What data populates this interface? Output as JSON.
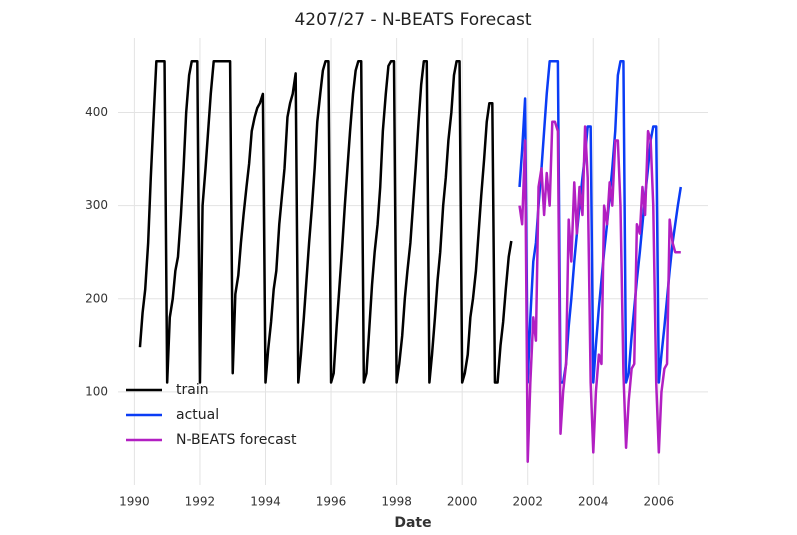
{
  "chart_data": {
    "type": "line",
    "title": "4207/27 - N-BEATS Forecast",
    "x_label": "Date",
    "xlim": [
      1989.5,
      2007.5
    ],
    "xticks": [
      1990,
      1992,
      1994,
      1996,
      1998,
      2000,
      2002,
      2004,
      2006
    ],
    "ylim": [
      0,
      480
    ],
    "yticks": [
      100,
      200,
      300,
      400
    ],
    "grid": true,
    "legend": "lower left",
    "series": [
      {
        "name": "train",
        "color": "#000000",
        "x": [
          1990.17,
          1990.25,
          1990.33,
          1990.42,
          1990.5,
          1990.58,
          1990.67,
          1990.75,
          1990.83,
          1990.92,
          1991,
          1991.08,
          1991.17,
          1991.25,
          1991.33,
          1991.42,
          1991.5,
          1991.58,
          1991.67,
          1991.75,
          1991.83,
          1991.92,
          1992,
          1992.08,
          1992.17,
          1992.25,
          1992.33,
          1992.42,
          1992.5,
          1992.58,
          1992.67,
          1992.75,
          1992.83,
          1992.92,
          1993,
          1993.08,
          1993.17,
          1993.25,
          1993.33,
          1993.42,
          1993.5,
          1993.58,
          1993.67,
          1993.75,
          1993.83,
          1993.92,
          1994,
          1994.08,
          1994.17,
          1994.25,
          1994.33,
          1994.42,
          1994.5,
          1994.58,
          1994.67,
          1994.75,
          1994.83,
          1994.92,
          1995,
          1995.08,
          1995.17,
          1995.25,
          1995.33,
          1995.42,
          1995.5,
          1995.58,
          1995.67,
          1995.75,
          1995.83,
          1995.92,
          1996,
          1996.08,
          1996.17,
          1996.25,
          1996.33,
          1996.42,
          1996.5,
          1996.58,
          1996.67,
          1996.75,
          1996.83,
          1996.92,
          1997,
          1997.08,
          1997.17,
          1997.25,
          1997.33,
          1997.42,
          1997.5,
          1997.58,
          1997.67,
          1997.75,
          1997.83,
          1997.92,
          1998,
          1998.08,
          1998.17,
          1998.25,
          1998.33,
          1998.42,
          1998.5,
          1998.58,
          1998.67,
          1998.75,
          1998.83,
          1998.92,
          1999,
          1999.08,
          1999.17,
          1999.25,
          1999.33,
          1999.42,
          1999.5,
          1999.58,
          1999.67,
          1999.75,
          1999.83,
          1999.92,
          2000,
          2000.08,
          2000.17,
          2000.25,
          2000.33,
          2000.42,
          2000.5,
          2000.58,
          2000.67,
          2000.75,
          2000.83,
          2000.92,
          2001,
          2001.08,
          2001.17,
          2001.25,
          2001.33,
          2001.42,
          2001.5
        ],
        "values": [
          148,
          185,
          210,
          260,
          330,
          390,
          455,
          455,
          455,
          455,
          110,
          180,
          200,
          230,
          245,
          290,
          340,
          400,
          440,
          455,
          455,
          455,
          110,
          300,
          340,
          380,
          420,
          455,
          455,
          455,
          455,
          455,
          455,
          455,
          120,
          205,
          225,
          260,
          290,
          320,
          345,
          380,
          395,
          405,
          410,
          420,
          110,
          145,
          175,
          210,
          230,
          280,
          310,
          340,
          395,
          410,
          420,
          442,
          110,
          140,
          180,
          220,
          260,
          300,
          340,
          390,
          420,
          445,
          455,
          455,
          110,
          120,
          170,
          210,
          250,
          300,
          340,
          380,
          420,
          445,
          455,
          455,
          110,
          120,
          170,
          215,
          250,
          280,
          320,
          380,
          420,
          450,
          455,
          455,
          110,
          130,
          160,
          200,
          230,
          260,
          300,
          340,
          390,
          430,
          455,
          455,
          110,
          140,
          180,
          220,
          250,
          300,
          330,
          370,
          400,
          440,
          455,
          455,
          110,
          120,
          140,
          180,
          200,
          230,
          270,
          310,
          350,
          390,
          410,
          410,
          110,
          110,
          150,
          175,
          210,
          245,
          262
        ]
      },
      {
        "name": "actual",
        "color": "#0a3cf5",
        "x": [
          2001.75,
          2001.83,
          2001.92,
          2002,
          2002.08,
          2002.17,
          2002.25,
          2002.33,
          2002.42,
          2002.5,
          2002.58,
          2002.67,
          2002.75,
          2002.83,
          2002.92,
          2003,
          2003.08,
          2003.17,
          2003.25,
          2003.33,
          2003.42,
          2003.5,
          2003.58,
          2003.67,
          2003.75,
          2003.83,
          2003.92,
          2004,
          2004.08,
          2004.17,
          2004.25,
          2004.33,
          2004.42,
          2004.5,
          2004.58,
          2004.67,
          2004.75,
          2004.83,
          2004.92,
          2005,
          2005.08,
          2005.17,
          2005.25,
          2005.33,
          2005.42,
          2005.5,
          2005.58,
          2005.67,
          2005.75,
          2005.83,
          2005.92,
          2006,
          2006.08,
          2006.17,
          2006.25,
          2006.33,
          2006.42,
          2006.5,
          2006.58,
          2006.67
        ],
        "values": [
          320,
          360,
          415,
          110,
          180,
          240,
          260,
          300,
          340,
          380,
          420,
          455,
          455,
          455,
          455,
          110,
          110,
          130,
          170,
          200,
          240,
          270,
          300,
          330,
          355,
          385,
          385,
          110,
          150,
          190,
          220,
          250,
          280,
          310,
          340,
          380,
          440,
          455,
          455,
          110,
          120,
          160,
          190,
          220,
          250,
          280,
          310,
          340,
          370,
          385,
          385,
          110,
          140,
          170,
          200,
          230,
          260,
          280,
          300,
          320
        ]
      },
      {
        "name": "N-BEATS forecast",
        "color": "#b21fc2",
        "x": [
          2001.75,
          2001.83,
          2001.92,
          2002,
          2002.08,
          2002.17,
          2002.25,
          2002.33,
          2002.42,
          2002.5,
          2002.58,
          2002.67,
          2002.75,
          2002.83,
          2002.92,
          2003,
          2003.08,
          2003.17,
          2003.25,
          2003.33,
          2003.42,
          2003.5,
          2003.58,
          2003.67,
          2003.75,
          2003.83,
          2003.92,
          2004,
          2004.08,
          2004.17,
          2004.25,
          2004.33,
          2004.42,
          2004.5,
          2004.58,
          2004.67,
          2004.75,
          2004.83,
          2004.92,
          2005,
          2005.08,
          2005.17,
          2005.25,
          2005.33,
          2005.42,
          2005.5,
          2005.58,
          2005.67,
          2005.75,
          2005.83,
          2005.92,
          2006,
          2006.08,
          2006.17,
          2006.25,
          2006.33,
          2006.42,
          2006.5,
          2006.58,
          2006.67
        ],
        "values": [
          300,
          280,
          370,
          25,
          110,
          180,
          155,
          320,
          340,
          290,
          335,
          300,
          390,
          390,
          380,
          55,
          100,
          130,
          285,
          240,
          325,
          270,
          320,
          290,
          385,
          330,
          110,
          35,
          100,
          140,
          130,
          300,
          280,
          325,
          300,
          370,
          370,
          300,
          120,
          40,
          90,
          125,
          130,
          280,
          270,
          320,
          290,
          380,
          370,
          300,
          110,
          35,
          100,
          125,
          130,
          285,
          260,
          250,
          250,
          250
        ]
      }
    ]
  }
}
